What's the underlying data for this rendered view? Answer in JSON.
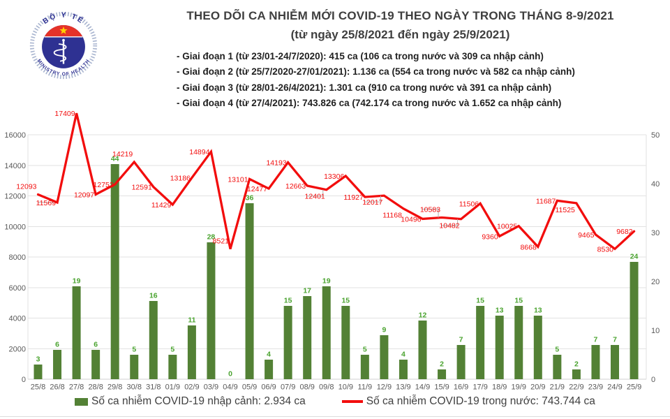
{
  "header": {
    "title_line1": "THEO DÕI CA NHIỄM MỚI COVID-19 THEO NGÀY TRONG THÁNG 8-9/2021",
    "title_line2": "(từ ngày 25/8/2021 đến ngày 25/9/2021)",
    "notes": [
      "- Giai đoạn 1 (từ 23/01-24/7/2020): 415 ca (106 ca trong nước và 309 ca nhập cảnh)",
      "- Giai đoạn 2 (từ 25/7/2020-27/01/2021): 1.136 ca (554 ca trong nước và 582 ca nhập cảnh)",
      "- Giai đoạn 3 (từ 28/01-26/4/2021): 1.301 ca (910 ca trong nước và 391 ca nhập cảnh)",
      "- Giai đoạn 4 (từ 27/4/2021): 743.826 ca (742.174 ca trong nước và 1.652 ca nhập cảnh)"
    ],
    "logo": {
      "top_text": "BỘ Y TẾ",
      "bottom_text": "MINISTRY OF HEALTH"
    }
  },
  "chart_data": {
    "type": "bar+line combo",
    "categories": [
      "25/8",
      "26/8",
      "27/8",
      "28/8",
      "29/8",
      "30/8",
      "31/8",
      "01/9",
      "02/9",
      "03/9",
      "04/9",
      "05/9",
      "06/9",
      "07/9",
      "08/9",
      "09/8",
      "10/9",
      "11/9",
      "12/9",
      "13/9",
      "14/9",
      "15/9",
      "16/9",
      "17/9",
      "18/9",
      "19/9",
      "20/9",
      "21/9",
      "22/9",
      "23/9",
      "24/9",
      "25/9"
    ],
    "series": [
      {
        "name": "Số ca nhiễm COVID-19 nhập cảnh",
        "type": "bar",
        "axis": "right",
        "values": [
          3,
          6,
          19,
          6,
          44,
          5,
          16,
          5,
          11,
          28,
          0,
          36,
          4,
          15,
          17,
          19,
          15,
          5,
          9,
          4,
          12,
          2,
          7,
          15,
          13,
          15,
          13,
          5,
          2,
          7,
          7,
          24
        ]
      },
      {
        "name": "Số ca nhiễm COVID-19 trong nước",
        "type": "line",
        "axis": "left",
        "values": [
          12093,
          11569,
          17409,
          12097,
          12752,
          14219,
          12591,
          11429,
          13186,
          14894,
          8521,
          13101,
          12477,
          14193,
          12663,
          12401,
          13306,
          11927,
          12017,
          11168,
          10496,
          10583,
          10482,
          11506,
          9360,
          10025,
          8668,
          11687,
          11525,
          9465,
          8530,
          9682
        ]
      }
    ],
    "left_axis": {
      "min": 0,
      "max": 16000,
      "step": 2000,
      "ticks": [
        0,
        2000,
        4000,
        6000,
        8000,
        10000,
        12000,
        14000,
        16000
      ]
    },
    "right_axis": {
      "min": 0,
      "max": 50,
      "step": 10,
      "ticks": [
        0,
        10,
        20,
        30,
        40,
        50
      ]
    },
    "gridlines": true,
    "legend_position": "bottom",
    "line_label_pos": [
      "a",
      "m",
      "m",
      "m",
      "m",
      "a",
      "m",
      "m",
      "m",
      "m",
      "a",
      "m",
      "m",
      "m",
      "m",
      "b",
      "m",
      "m",
      "b",
      "b",
      "m",
      "a",
      "b",
      "m",
      "m",
      "m",
      "m",
      "m",
      "b",
      "m",
      "m",
      "m"
    ],
    "line_label_leaders": [
      1,
      15,
      18,
      21,
      22
    ]
  },
  "legend": {
    "bars": "Số ca nhiễm COVID-19 nhập cảnh: 2.934 ca",
    "line": "Số ca nhiễm COVID-19 trong nước: 743.744 ca"
  },
  "colors": {
    "bar": "#538135",
    "bar_label": "#4aa32f",
    "line": "#f20d0d",
    "line_label": "#f20d0d",
    "grid": "#e2e2e2",
    "axis_line": "#cfcfcf",
    "leader": "#b0b0b0",
    "axis_text": "#595959",
    "logo_navy": "#2e3192",
    "logo_red": "#e53228",
    "logo_star": "#ffd100",
    "logo_ring": "#a8b4cf"
  }
}
